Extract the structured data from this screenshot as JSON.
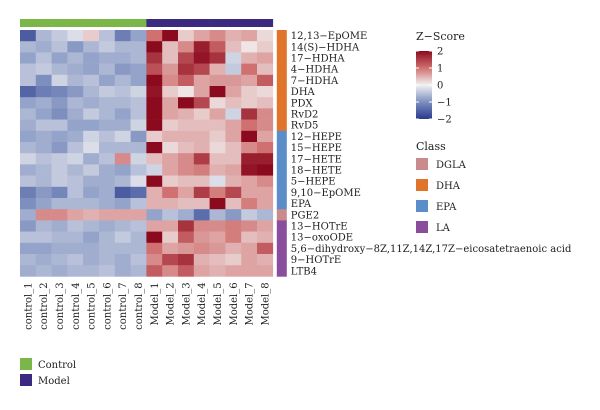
{
  "chart_data": {
    "type": "heatmap",
    "columns": [
      "control_1",
      "control_2",
      "control_3",
      "control_4",
      "control_5",
      "control_6",
      "control_7",
      "control_8",
      "Model_1",
      "Model_2",
      "Model_3",
      "Model_4",
      "Model_5",
      "Model_6",
      "Model_7",
      "Model_8"
    ],
    "column_groups": [
      "Control",
      "Control",
      "Control",
      "Control",
      "Control",
      "Control",
      "Control",
      "Control",
      "Model",
      "Model",
      "Model",
      "Model",
      "Model",
      "Model",
      "Model",
      "Model"
    ],
    "rows": [
      "12,13−EpOME",
      "14(S)−HDHA",
      "17−HDHA",
      "4−HDHA",
      "7−HDHA",
      "DHA",
      "PDX",
      "RvD2",
      "RvD5",
      "12−HEPE",
      "15−HEPE",
      "17−HETE",
      "18−HETE",
      "5−HEPE",
      "9,10−EpOME",
      "EPA",
      "PGE2",
      "13−HOTrE",
      "13−oxoODE",
      "5,6−dihydroxy−8Z,11Z,14Z,17Z−eicosatetraenoic acid",
      "9−HOTrE",
      "LTB4"
    ],
    "row_classes": [
      "DHA",
      "DHA",
      "DHA",
      "DHA",
      "DHA",
      "DHA",
      "DHA",
      "DHA",
      "DHA",
      "EPA",
      "EPA",
      "EPA",
      "EPA",
      "EPA",
      "EPA",
      "EPA",
      "DGLA",
      "LA",
      "LA",
      "LA",
      "LA",
      "LA"
    ],
    "values": [
      [
        -1.6,
        -0.6,
        -0.4,
        -0.2,
        0.3,
        -0.5,
        -1.2,
        -0.8,
        1.0,
        2.0,
        0.3,
        0.6,
        0.8,
        0.5,
        0.6,
        0.2
      ],
      [
        -0.6,
        -0.7,
        -0.5,
        -0.9,
        -0.6,
        -0.4,
        -0.6,
        -0.6,
        2.0,
        0.4,
        0.8,
        1.8,
        1.2,
        0.4,
        0.1,
        0.3
      ],
      [
        -0.8,
        -0.5,
        -0.8,
        -0.6,
        -0.8,
        -0.7,
        -0.7,
        -0.6,
        1.6,
        0.4,
        1.4,
        1.9,
        1.6,
        -0.3,
        0.5,
        0.6
      ],
      [
        -0.5,
        -0.4,
        -0.6,
        -0.7,
        -0.8,
        -0.6,
        -0.9,
        -0.8,
        1.3,
        0.7,
        1.6,
        1.4,
        0.5,
        -0.4,
        1.0,
        0.4
      ],
      [
        -0.5,
        -1.0,
        -0.3,
        -0.6,
        -0.5,
        -0.8,
        -0.6,
        -0.8,
        2.0,
        0.8,
        1.2,
        0.6,
        0.7,
        0.7,
        0.6,
        1.2
      ],
      [
        -1.5,
        -1.2,
        -1.1,
        -0.9,
        -0.6,
        -0.4,
        -0.5,
        -0.3,
        1.9,
        0.3,
        0.1,
        0.6,
        2.0,
        0.6,
        0.3,
        0.2
      ],
      [
        -0.8,
        -0.7,
        -0.9,
        -0.6,
        -0.7,
        -0.6,
        -0.6,
        -0.5,
        2.0,
        0.6,
        2.0,
        1.4,
        0.2,
        0.4,
        0.3,
        0.4
      ],
      [
        -0.6,
        -0.8,
        -1.0,
        -0.7,
        -0.4,
        -0.6,
        -0.8,
        -0.5,
        2.0,
        0.6,
        0.5,
        0.3,
        0.6,
        -0.3,
        1.6,
        0.8
      ],
      [
        -0.7,
        -0.5,
        -0.5,
        -0.8,
        -0.8,
        -0.7,
        -0.7,
        -0.3,
        2.0,
        0.3,
        0.4,
        0.4,
        0.4,
        0.6,
        1.0,
        0.8
      ],
      [
        -0.8,
        -0.7,
        -0.8,
        -0.7,
        -0.3,
        -0.5,
        -0.3,
        -0.9,
        0.3,
        0.5,
        0.5,
        0.5,
        0.3,
        0.6,
        2.0,
        0.6
      ],
      [
        -0.6,
        -0.7,
        -0.9,
        -0.5,
        -0.2,
        -0.6,
        -0.6,
        -0.6,
        2.0,
        0.2,
        0.4,
        0.5,
        0.2,
        0.4,
        0.8,
        1.0
      ],
      [
        -0.3,
        -0.5,
        -0.4,
        -0.3,
        -0.7,
        -0.5,
        0.8,
        -0.3,
        0.4,
        0.6,
        0.8,
        1.5,
        0.4,
        0.4,
        1.8,
        1.8
      ],
      [
        -0.7,
        -0.6,
        -0.4,
        -0.6,
        -0.4,
        -0.7,
        -0.8,
        -0.5,
        -0.3,
        0.6,
        0.8,
        0.9,
        0.5,
        0.6,
        1.9,
        2.0
      ],
      [
        -0.5,
        -0.6,
        -0.4,
        -0.5,
        -0.7,
        -0.7,
        -0.6,
        -0.2,
        2.0,
        0.3,
        0.4,
        0.4,
        -0.2,
        0.5,
        0.6,
        0.8
      ],
      [
        -1.2,
        -0.9,
        -1.1,
        -0.5,
        -0.8,
        -0.7,
        -1.6,
        -1.4,
        0.5,
        1.0,
        0.6,
        1.5,
        0.9,
        1.4,
        0.6,
        0.6
      ],
      [
        -1.0,
        -0.8,
        -0.6,
        -0.6,
        -0.6,
        -0.7,
        -0.8,
        -0.5,
        0.5,
        0.5,
        0.4,
        0.4,
        2.0,
        0.4,
        0.9,
        0.6
      ],
      [
        -0.7,
        0.8,
        0.8,
        0.6,
        0.5,
        0.6,
        0.6,
        0.6,
        -0.8,
        -0.5,
        -0.7,
        -1.4,
        -0.6,
        -0.9,
        -0.4,
        -0.6
      ],
      [
        -0.9,
        -0.6,
        -0.7,
        -0.5,
        -0.6,
        -0.7,
        -0.6,
        -0.5,
        0.6,
        0.6,
        1.6,
        0.8,
        0.8,
        0.9,
        0.8,
        0.6
      ],
      [
        -0.5,
        -0.5,
        -0.6,
        -0.6,
        -0.8,
        -0.6,
        -0.4,
        -0.6,
        2.0,
        0.3,
        1.2,
        0.7,
        0.6,
        0.9,
        0.4,
        0.5
      ],
      [
        -0.8,
        -0.8,
        -0.7,
        -0.7,
        -0.7,
        -0.6,
        -0.6,
        -0.6,
        1.0,
        0.6,
        0.7,
        0.8,
        0.7,
        0.5,
        0.6,
        1.2
      ],
      [
        -0.6,
        -0.7,
        -0.6,
        -0.5,
        -0.7,
        -0.6,
        -0.7,
        -0.5,
        0.8,
        1.4,
        1.6,
        0.5,
        0.4,
        0.3,
        0.6,
        0.5
      ],
      [
        -0.7,
        -0.6,
        -0.7,
        -0.6,
        -0.6,
        -0.5,
        -0.7,
        -0.6,
        1.2,
        0.8,
        1.2,
        0.6,
        0.5,
        0.6,
        0.6,
        0.6
      ]
    ],
    "color_scale": {
      "title": "Z−Score",
      "ticks": [
        2,
        1,
        0,
        -1,
        -2
      ],
      "tick_labels": [
        "2",
        "1",
        "0",
        "−1",
        "−2"
      ],
      "low": "#2b3a8c",
      "mid": "#f2f2f2",
      "high": "#8b0a1e"
    },
    "class_legend": {
      "title": "Class",
      "items": [
        {
          "name": "DGLA",
          "color": "#c98b8b"
        },
        {
          "name": "DHA",
          "color": "#e0742a"
        },
        {
          "name": "EPA",
          "color": "#5b8ec9"
        },
        {
          "name": "LA",
          "color": "#8a4d9e"
        }
      ]
    },
    "group_legend": {
      "items": [
        {
          "name": "Control",
          "color": "#7ab648"
        },
        {
          "name": "Model",
          "color": "#3b2a80"
        }
      ]
    }
  }
}
